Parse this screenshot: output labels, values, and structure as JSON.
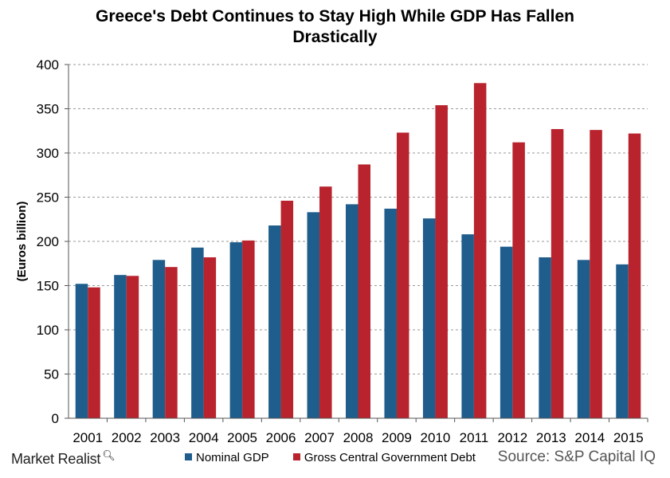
{
  "chart_data": {
    "type": "bar",
    "title": "Greece's Debt Continues to Stay High While GDP Has Fallen Drastically",
    "title_lines": [
      "Greece's Debt Continues to Stay High While GDP Has Fallen",
      "Drastically"
    ],
    "ylabel": "(Euros billion)",
    "xlabel": "",
    "ylim": [
      0,
      400
    ],
    "yticks": [
      0,
      50,
      100,
      150,
      200,
      250,
      300,
      350,
      400
    ],
    "grid": true,
    "legend": "bottom",
    "categories": [
      "2001",
      "2002",
      "2003",
      "2004",
      "2005",
      "2006",
      "2007",
      "2008",
      "2009",
      "2010",
      "2011",
      "2012",
      "2013",
      "2014",
      "2015"
    ],
    "series": [
      {
        "name": "Nominal GDP",
        "color": "#1f5d8c",
        "values": [
          152,
          162,
          179,
          193,
          199,
          218,
          233,
          242,
          237,
          226,
          208,
          194,
          182,
          179,
          174
        ]
      },
      {
        "name": "Gross Central Government Debt",
        "color": "#b8232d",
        "values": [
          148,
          161,
          171,
          182,
          201,
          246,
          262,
          287,
          323,
          354,
          379,
          312,
          327,
          326,
          322
        ]
      }
    ]
  },
  "footer": {
    "brand": "Market Realist",
    "brand_icon": "magnifier-icon",
    "source": "Source: S&P Capital IQ"
  }
}
